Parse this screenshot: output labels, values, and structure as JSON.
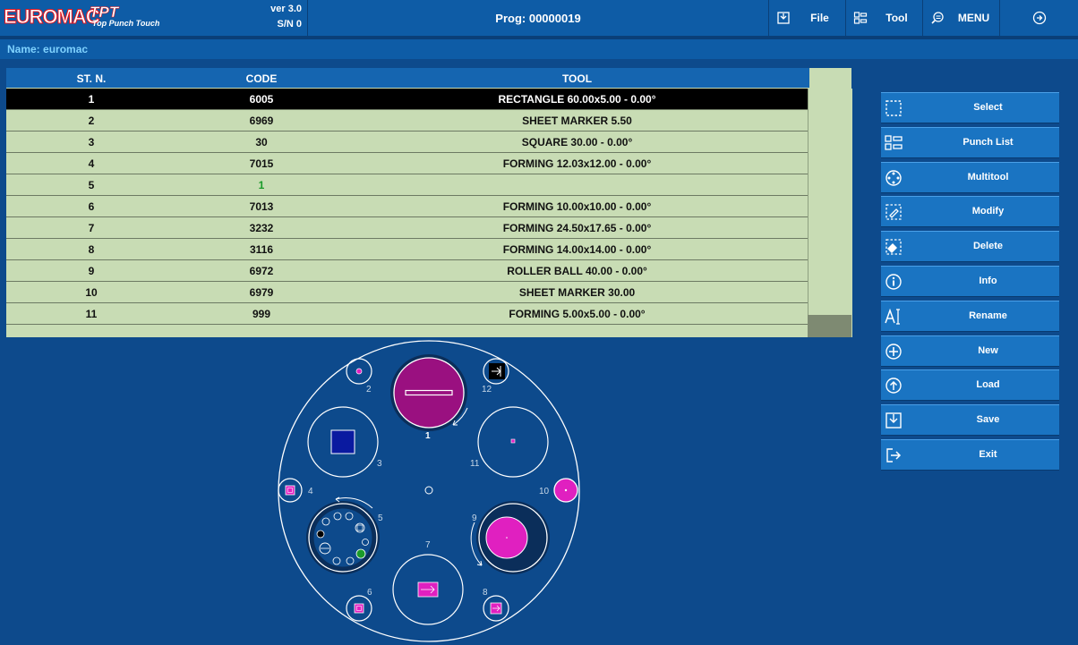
{
  "header": {
    "brand": "EUROMAC",
    "product": "TPT",
    "product_sub": "Top Punch Touch",
    "version": "ver 3.0",
    "serial": "S/N 0",
    "program": "Prog: 00000019",
    "buttons": [
      {
        "label": "File",
        "icon": "file-icon"
      },
      {
        "label": "Tool",
        "icon": "tool-icon"
      },
      {
        "label": "MENU",
        "icon": "menu-icon"
      },
      {
        "label": "",
        "icon": "exit-circle-icon"
      }
    ]
  },
  "name_bar": "Name: euromac",
  "table": {
    "columns": [
      "ST. N.",
      "CODE",
      "TOOL"
    ],
    "selected_row": 0,
    "rows": [
      {
        "st": "1",
        "code": "6005",
        "tool": "RECTANGLE 60.00x5.00 - 0.00°"
      },
      {
        "st": "2",
        "code": "6969",
        "tool": "SHEET MARKER 5.50"
      },
      {
        "st": "3",
        "code": "30",
        "tool": "SQUARE 30.00 - 0.00°"
      },
      {
        "st": "4",
        "code": "7015",
        "tool": "FORMING 12.03x12.00 - 0.00°"
      },
      {
        "st": "5",
        "code": "1",
        "tool": ""
      },
      {
        "st": "6",
        "code": "7013",
        "tool": "FORMING 10.00x10.00 - 0.00°"
      },
      {
        "st": "7",
        "code": "3232",
        "tool": "FORMING 24.50x17.65 - 0.00°"
      },
      {
        "st": "8",
        "code": "3116",
        "tool": "FORMING 14.00x14.00 - 0.00°"
      },
      {
        "st": "9",
        "code": "6972",
        "tool": "ROLLER BALL 40.00 - 0.00°"
      },
      {
        "st": "10",
        "code": "6979",
        "tool": "SHEET MARKER 30.00"
      },
      {
        "st": "11",
        "code": "999",
        "tool": "FORMING 5.00x5.00 - 0.00°"
      }
    ]
  },
  "side_buttons": [
    {
      "label": "Select",
      "icon": "select-icon"
    },
    {
      "label": "Punch List",
      "icon": "punch-list-icon"
    },
    {
      "label": "Multitool",
      "icon": "multitool-icon"
    },
    {
      "label": "Modify",
      "icon": "modify-icon"
    },
    {
      "label": "Delete",
      "icon": "delete-icon"
    },
    {
      "label": "Info",
      "icon": "info-icon"
    },
    {
      "label": "Rename",
      "icon": "rename-icon"
    },
    {
      "label": "New",
      "icon": "new-icon"
    },
    {
      "label": "Load",
      "icon": "load-icon"
    },
    {
      "label": "Save",
      "icon": "save-icon"
    },
    {
      "label": "Exit",
      "icon": "exit-icon"
    }
  ],
  "turret": {
    "station_labels": [
      "1",
      "2",
      "3",
      "4",
      "5",
      "6",
      "7",
      "8",
      "9",
      "10",
      "11",
      "12"
    ]
  },
  "colors": {
    "background": "#0d4a8c",
    "bar": "#0e5ca6",
    "row": "#c8dcb4",
    "selected_row": "#000000",
    "button": "#1a74c2",
    "magenta": "#e020c0",
    "purple": "#9a1080",
    "name_text": "#7fd2ff"
  }
}
